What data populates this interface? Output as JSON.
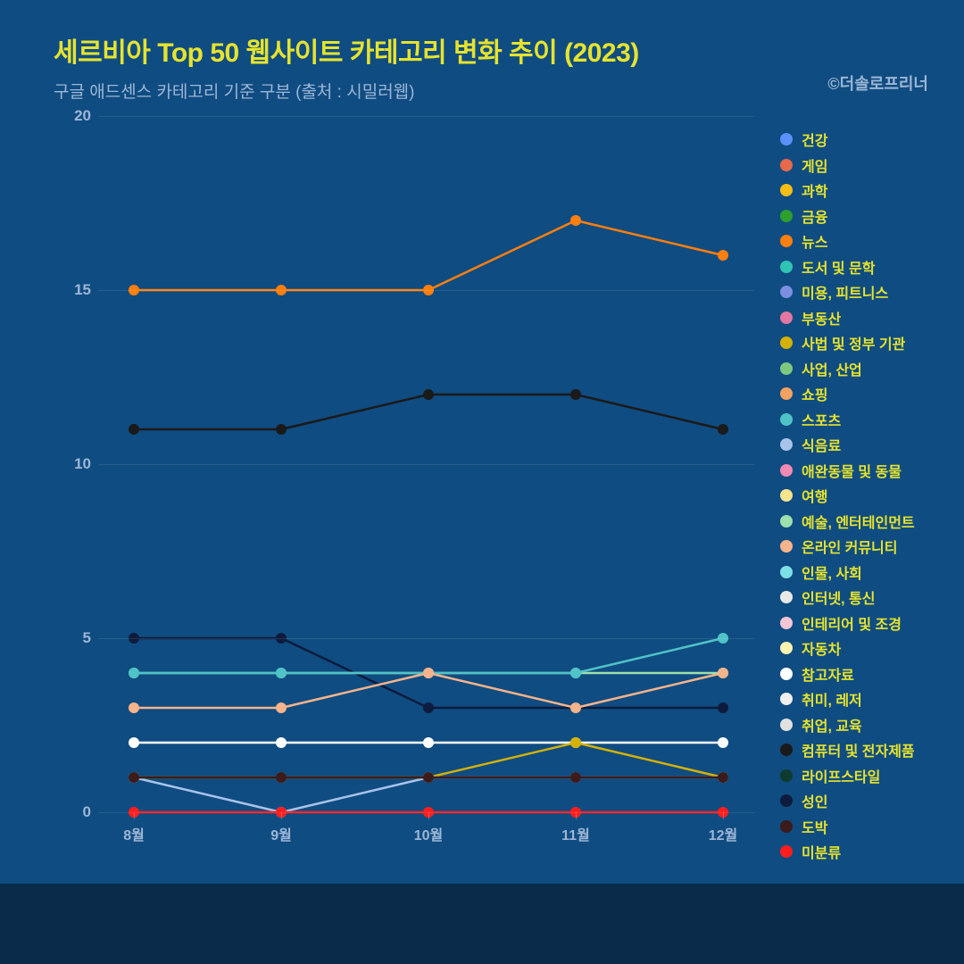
{
  "title": "세르비아 Top 50 웹사이트 카테고리 변화 추이 (2023)",
  "subtitle": "구글 애드센스 카테고리 기준 구분 (출처 : 시밀러웹)",
  "credit": "©더솔로프리너",
  "chart": {
    "type": "line",
    "background_color": "#0f4c81",
    "footer_band_color": "#0a2b4a",
    "grid_color": "rgba(255,255,255,0.10)",
    "title_color": "#e6e32e",
    "subtitle_color": "#9db6d6",
    "axis_label_color": "#9db6d6",
    "legend_label_color": "#e6e32e",
    "title_fontsize": 30,
    "subtitle_fontsize": 19,
    "axis_fontsize": 17,
    "legend_fontsize": 16,
    "line_width": 2.5,
    "marker_radius": 6,
    "ylim": [
      0,
      20
    ],
    "ytick_step": 5,
    "x_categories": [
      "8월",
      "9월",
      "10월",
      "11월",
      "12월"
    ],
    "legend": [
      {
        "label": "건강",
        "color": "#5b8ff9"
      },
      {
        "label": "게임",
        "color": "#e8684a"
      },
      {
        "label": "과학",
        "color": "#f6bd16"
      },
      {
        "label": "금융",
        "color": "#2ca02c"
      },
      {
        "label": "뉴스",
        "color": "#ff7f0e"
      },
      {
        "label": "도서 및 문학",
        "color": "#2ec4b6"
      },
      {
        "label": "미용, 피트니스",
        "color": "#7c8fe0"
      },
      {
        "label": "부동산",
        "color": "#e377a2"
      },
      {
        "label": "사법 및 정부 기관",
        "color": "#d4b106"
      },
      {
        "label": "사업, 산업",
        "color": "#7fc97f"
      },
      {
        "label": "쇼핑",
        "color": "#f4a261"
      },
      {
        "label": "스포츠",
        "color": "#4fc3c7"
      },
      {
        "label": "식음료",
        "color": "#a8c3ea"
      },
      {
        "label": "애완동물 및 동물",
        "color": "#f28ab2"
      },
      {
        "label": "여행",
        "color": "#f6e58d"
      },
      {
        "label": "예술, 엔터테인먼트",
        "color": "#9de0ad"
      },
      {
        "label": "온라인 커뮤니티",
        "color": "#f7b48b"
      },
      {
        "label": "인물, 사회",
        "color": "#7de0e6"
      },
      {
        "label": "인터넷, 통신",
        "color": "#e8e8e8"
      },
      {
        "label": "인테리어 및 조경",
        "color": "#f5c6d6"
      },
      {
        "label": "자동차",
        "color": "#fff3b0"
      },
      {
        "label": "참고자료",
        "color": "#ffffff"
      },
      {
        "label": "취미, 레저",
        "color": "#f0f0f0"
      },
      {
        "label": "취업, 교육",
        "color": "#e0e0e0"
      },
      {
        "label": "컴퓨터 및 전자제품",
        "color": "#1a1a1a"
      },
      {
        "label": "라이프스타일",
        "color": "#0e3b2e"
      },
      {
        "label": "성인",
        "color": "#0d1b3d"
      },
      {
        "label": "도박",
        "color": "#3b1b1b"
      },
      {
        "label": "미분류",
        "color": "#ff1e1e"
      }
    ],
    "series": [
      {
        "name": "뉴스",
        "color": "#ff7f0e",
        "values": [
          15,
          15,
          15,
          17,
          16
        ]
      },
      {
        "name": "컴퓨터 및 전자제품",
        "color": "#1a1a1a",
        "values": [
          11,
          11,
          12,
          12,
          11
        ]
      },
      {
        "name": "성인",
        "color": "#0d1b3d",
        "values": [
          5,
          5,
          3,
          3,
          3
        ]
      },
      {
        "name": "예술, 엔터테인먼트",
        "color": "#9de0ad",
        "values": [
          4,
          4,
          4,
          4,
          4
        ]
      },
      {
        "name": "스포츠",
        "color": "#4fc3c7",
        "values": [
          4,
          4,
          4,
          4,
          5
        ]
      },
      {
        "name": "온라인 커뮤니티",
        "color": "#f7b48b",
        "values": [
          3,
          3,
          4,
          3,
          4
        ]
      },
      {
        "name": "참고자료",
        "color": "#ffffff",
        "values": [
          2,
          2,
          2,
          2,
          2
        ]
      },
      {
        "name": "사법 및 정부 기관",
        "color": "#d4b106",
        "values": [
          1,
          1,
          1,
          2,
          1
        ]
      },
      {
        "name": "식음료",
        "color": "#a8c3ea",
        "values": [
          1,
          0,
          1,
          1,
          1
        ]
      },
      {
        "name": "도박",
        "color": "#3b1b1b",
        "values": [
          1,
          1,
          1,
          1,
          1
        ]
      },
      {
        "name": "미분류",
        "color": "#ff1e1e",
        "values": [
          0,
          0,
          0,
          0,
          0
        ]
      }
    ]
  }
}
